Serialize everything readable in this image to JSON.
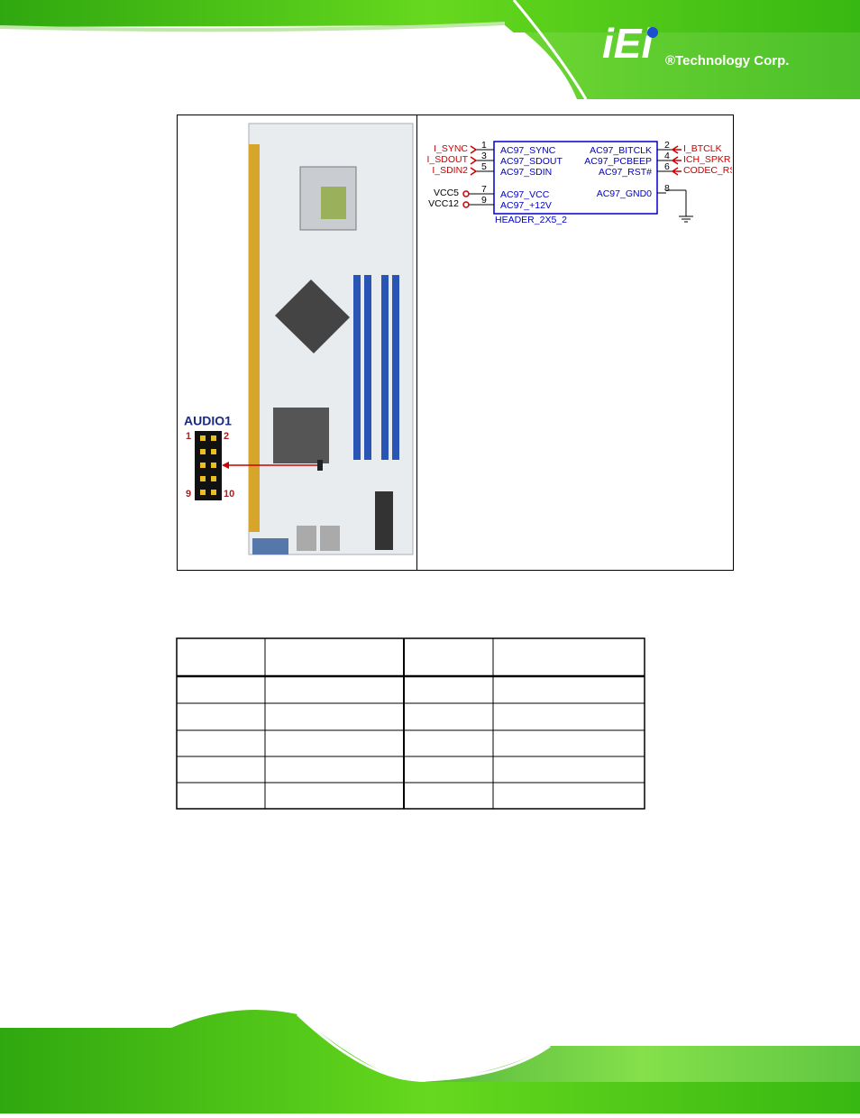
{
  "header": {
    "logo": "iEi",
    "tagline": "®Technology Corp."
  },
  "board": {
    "connector_label": "AUDIO1",
    "pin_labels": [
      "1",
      "2",
      "9",
      "10"
    ]
  },
  "schematic": {
    "left_pins": [
      {
        "pin": "1",
        "net": "I_SYNC",
        "signal": "AC97_SYNC"
      },
      {
        "pin": "3",
        "net": "I_SDOUT",
        "signal": "AC97_SDOUT"
      },
      {
        "pin": "5",
        "net": "I_SDIN2",
        "signal": "AC97_SDIN"
      },
      {
        "pin": "7",
        "net": "VCC5",
        "signal": "AC97_VCC"
      },
      {
        "pin": "9",
        "net": "VCC12",
        "signal": "AC97_+12V"
      }
    ],
    "right_pins": [
      {
        "pin": "2",
        "net": "I_BTCLK",
        "signal": "AC97_BITCLK"
      },
      {
        "pin": "4",
        "net": "ICH_SPKR",
        "signal": "AC97_PCBEEP"
      },
      {
        "pin": "6",
        "net": "CODEC_RST#",
        "signal": "AC97_RST#"
      },
      {
        "pin": "8",
        "signal": "AC97_GND0"
      }
    ],
    "part": "HEADER_2X5_2"
  }
}
